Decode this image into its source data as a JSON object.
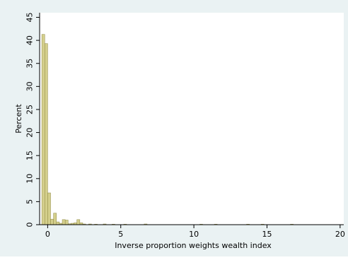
{
  "chart_data": {
    "type": "bar",
    "title": "",
    "xlabel": "Inverse proportion weights wealth index",
    "ylabel": "Percent",
    "xlim": [
      -0.55,
      20.25
    ],
    "ylim": [
      0,
      46
    ],
    "xticks": [
      0,
      5,
      10,
      15,
      20
    ],
    "xtick_labels": [
      "0",
      "5",
      "10",
      "15",
      "20"
    ],
    "yticks": [
      0,
      5,
      10,
      15,
      20,
      25,
      30,
      35,
      40,
      45
    ],
    "ytick_labels": [
      "0",
      "5",
      "10",
      "15",
      "20",
      "25",
      "30",
      "35",
      "40",
      "45"
    ],
    "bin_width": 0.2,
    "grid": false,
    "bar_color": "#d4cf8c",
    "bar_edge_color": "#8d8740",
    "bins": [
      {
        "x": -0.4,
        "value": 41.3
      },
      {
        "x": -0.2,
        "value": 39.3
      },
      {
        "x": 0.0,
        "value": 6.9
      },
      {
        "x": 0.2,
        "value": 1.2
      },
      {
        "x": 0.4,
        "value": 2.5
      },
      {
        "x": 0.6,
        "value": 0.6
      },
      {
        "x": 0.8,
        "value": 0.3
      },
      {
        "x": 1.0,
        "value": 1.1
      },
      {
        "x": 1.2,
        "value": 1.0
      },
      {
        "x": 1.4,
        "value": 0.2
      },
      {
        "x": 1.6,
        "value": 0.3
      },
      {
        "x": 1.8,
        "value": 0.4
      },
      {
        "x": 2.0,
        "value": 1.1
      },
      {
        "x": 2.2,
        "value": 0.4
      },
      {
        "x": 2.4,
        "value": 0.15
      },
      {
        "x": 2.8,
        "value": 0.15
      },
      {
        "x": 3.2,
        "value": 0.1
      },
      {
        "x": 3.8,
        "value": 0.15
      },
      {
        "x": 4.4,
        "value": 0.1
      },
      {
        "x": 5.2,
        "value": 0.1
      },
      {
        "x": 6.6,
        "value": 0.15
      },
      {
        "x": 10.4,
        "value": 0.1
      },
      {
        "x": 11.4,
        "value": 0.1
      },
      {
        "x": 13.6,
        "value": 0.1
      },
      {
        "x": 14.6,
        "value": 0.1
      },
      {
        "x": 16.6,
        "value": 0.1
      }
    ]
  }
}
